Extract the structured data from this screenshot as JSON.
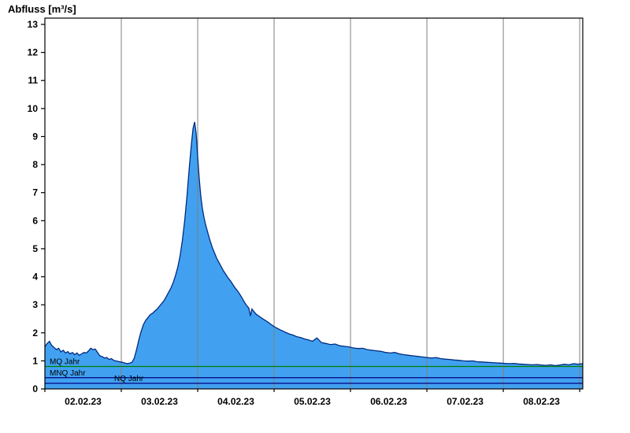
{
  "title": "Abfluss [m³/s]",
  "chart_data": {
    "type": "area",
    "title": "Abfluss [m³/s]",
    "ylabel": "Abfluss [m³/s]",
    "xlabel": "",
    "ylim": [
      0,
      13
    ],
    "y_ticks": [
      0,
      1,
      2,
      3,
      4,
      5,
      6,
      7,
      8,
      9,
      10,
      11,
      12,
      13
    ],
    "x_tick_labels": [
      "02.02.23",
      "03.02.23",
      "04.02.23",
      "05.02.23",
      "06.02.23",
      "07.02.23",
      "08.02.23"
    ],
    "x_total_days": 7.04,
    "grid": "vertical lines at day boundaries",
    "legend_position": "none",
    "colors": {
      "fill": "#41A1F0",
      "line": "#002B80",
      "grid": "#808080",
      "axis": "#000000"
    },
    "reference_lines": [
      {
        "label": "MQ Jahr",
        "value": 0.8,
        "color": "#008000"
      },
      {
        "label": "MNQ Jahr",
        "value": 0.4,
        "color": "#000080"
      },
      {
        "label": "NQ Jahr",
        "value": 0.2,
        "color": "#000080"
      }
    ],
    "series": [
      {
        "name": "Abfluss",
        "unit": "m³/s",
        "points": [
          [
            0.0,
            1.5
          ],
          [
            0.03,
            1.62
          ],
          [
            0.06,
            1.7
          ],
          [
            0.09,
            1.55
          ],
          [
            0.12,
            1.48
          ],
          [
            0.15,
            1.4
          ],
          [
            0.18,
            1.45
          ],
          [
            0.21,
            1.32
          ],
          [
            0.24,
            1.38
          ],
          [
            0.27,
            1.28
          ],
          [
            0.3,
            1.33
          ],
          [
            0.33,
            1.25
          ],
          [
            0.36,
            1.3
          ],
          [
            0.39,
            1.22
          ],
          [
            0.42,
            1.28
          ],
          [
            0.45,
            1.2
          ],
          [
            0.48,
            1.25
          ],
          [
            0.51,
            1.3
          ],
          [
            0.54,
            1.28
          ],
          [
            0.57,
            1.35
          ],
          [
            0.6,
            1.45
          ],
          [
            0.63,
            1.4
          ],
          [
            0.66,
            1.42
          ],
          [
            0.69,
            1.3
          ],
          [
            0.72,
            1.18
          ],
          [
            0.75,
            1.15
          ],
          [
            0.78,
            1.1
          ],
          [
            0.81,
            1.12
          ],
          [
            0.84,
            1.05
          ],
          [
            0.87,
            1.08
          ],
          [
            0.9,
            1.02
          ],
          [
            0.93,
            1.0
          ],
          [
            0.96,
            0.98
          ],
          [
            0.99,
            0.96
          ],
          [
            1.02,
            0.95
          ],
          [
            1.05,
            0.92
          ],
          [
            1.08,
            0.9
          ],
          [
            1.11,
            0.92
          ],
          [
            1.14,
            0.95
          ],
          [
            1.17,
            1.1
          ],
          [
            1.2,
            1.4
          ],
          [
            1.23,
            1.75
          ],
          [
            1.26,
            2.05
          ],
          [
            1.29,
            2.3
          ],
          [
            1.32,
            2.45
          ],
          [
            1.35,
            2.55
          ],
          [
            1.38,
            2.65
          ],
          [
            1.41,
            2.7
          ],
          [
            1.44,
            2.78
          ],
          [
            1.47,
            2.85
          ],
          [
            1.5,
            2.95
          ],
          [
            1.53,
            3.05
          ],
          [
            1.56,
            3.15
          ],
          [
            1.59,
            3.3
          ],
          [
            1.62,
            3.45
          ],
          [
            1.65,
            3.6
          ],
          [
            1.68,
            3.8
          ],
          [
            1.71,
            4.05
          ],
          [
            1.74,
            4.35
          ],
          [
            1.77,
            4.75
          ],
          [
            1.8,
            5.3
          ],
          [
            1.83,
            6.0
          ],
          [
            1.86,
            6.9
          ],
          [
            1.89,
            7.9
          ],
          [
            1.92,
            8.8
          ],
          [
            1.94,
            9.3
          ],
          [
            1.96,
            9.52
          ],
          [
            1.98,
            9.1
          ],
          [
            2.0,
            8.3
          ],
          [
            2.02,
            7.5
          ],
          [
            2.04,
            6.9
          ],
          [
            2.06,
            6.45
          ],
          [
            2.08,
            6.15
          ],
          [
            2.1,
            5.9
          ],
          [
            2.13,
            5.6
          ],
          [
            2.16,
            5.3
          ],
          [
            2.19,
            5.05
          ],
          [
            2.22,
            4.85
          ],
          [
            2.25,
            4.65
          ],
          [
            2.28,
            4.5
          ],
          [
            2.31,
            4.35
          ],
          [
            2.34,
            4.2
          ],
          [
            2.37,
            4.08
          ],
          [
            2.4,
            3.95
          ],
          [
            2.43,
            3.85
          ],
          [
            2.46,
            3.72
          ],
          [
            2.49,
            3.6
          ],
          [
            2.52,
            3.5
          ],
          [
            2.55,
            3.38
          ],
          [
            2.58,
            3.25
          ],
          [
            2.61,
            3.1
          ],
          [
            2.64,
            2.98
          ],
          [
            2.67,
            2.88
          ],
          [
            2.69,
            2.6
          ],
          [
            2.71,
            2.85
          ],
          [
            2.74,
            2.75
          ],
          [
            2.77,
            2.65
          ],
          [
            2.8,
            2.6
          ],
          [
            2.84,
            2.52
          ],
          [
            2.88,
            2.45
          ],
          [
            2.92,
            2.38
          ],
          [
            2.96,
            2.3
          ],
          [
            3.0,
            2.22
          ],
          [
            3.05,
            2.15
          ],
          [
            3.1,
            2.08
          ],
          [
            3.15,
            2.02
          ],
          [
            3.2,
            1.96
          ],
          [
            3.25,
            1.92
          ],
          [
            3.3,
            1.86
          ],
          [
            3.35,
            1.83
          ],
          [
            3.4,
            1.78
          ],
          [
            3.45,
            1.75
          ],
          [
            3.5,
            1.7
          ],
          [
            3.56,
            1.82
          ],
          [
            3.62,
            1.65
          ],
          [
            3.68,
            1.62
          ],
          [
            3.74,
            1.58
          ],
          [
            3.8,
            1.6
          ],
          [
            3.86,
            1.54
          ],
          [
            3.92,
            1.52
          ],
          [
            3.98,
            1.5
          ],
          [
            4.04,
            1.46
          ],
          [
            4.1,
            1.44
          ],
          [
            4.16,
            1.45
          ],
          [
            4.22,
            1.4
          ],
          [
            4.28,
            1.38
          ],
          [
            4.34,
            1.36
          ],
          [
            4.4,
            1.34
          ],
          [
            4.46,
            1.3
          ],
          [
            4.52,
            1.28
          ],
          [
            4.58,
            1.3
          ],
          [
            4.64,
            1.25
          ],
          [
            4.7,
            1.22
          ],
          [
            4.76,
            1.2
          ],
          [
            4.82,
            1.18
          ],
          [
            4.88,
            1.16
          ],
          [
            4.94,
            1.14
          ],
          [
            5.0,
            1.12
          ],
          [
            5.06,
            1.1
          ],
          [
            5.12,
            1.12
          ],
          [
            5.18,
            1.08
          ],
          [
            5.24,
            1.06
          ],
          [
            5.3,
            1.05
          ],
          [
            5.36,
            1.03
          ],
          [
            5.42,
            1.02
          ],
          [
            5.48,
            1.0
          ],
          [
            5.54,
            0.99
          ],
          [
            5.6,
            1.0
          ],
          [
            5.66,
            0.97
          ],
          [
            5.72,
            0.96
          ],
          [
            5.78,
            0.95
          ],
          [
            5.84,
            0.94
          ],
          [
            5.9,
            0.93
          ],
          [
            5.96,
            0.92
          ],
          [
            6.02,
            0.91
          ],
          [
            6.08,
            0.9
          ],
          [
            6.14,
            0.91
          ],
          [
            6.2,
            0.89
          ],
          [
            6.26,
            0.88
          ],
          [
            6.32,
            0.87
          ],
          [
            6.38,
            0.86
          ],
          [
            6.44,
            0.87
          ],
          [
            6.5,
            0.85
          ],
          [
            6.56,
            0.84
          ],
          [
            6.62,
            0.86
          ],
          [
            6.68,
            0.83
          ],
          [
            6.74,
            0.85
          ],
          [
            6.8,
            0.88
          ],
          [
            6.86,
            0.86
          ],
          [
            6.92,
            0.9
          ],
          [
            6.98,
            0.88
          ],
          [
            7.04,
            0.9
          ]
        ]
      }
    ]
  }
}
